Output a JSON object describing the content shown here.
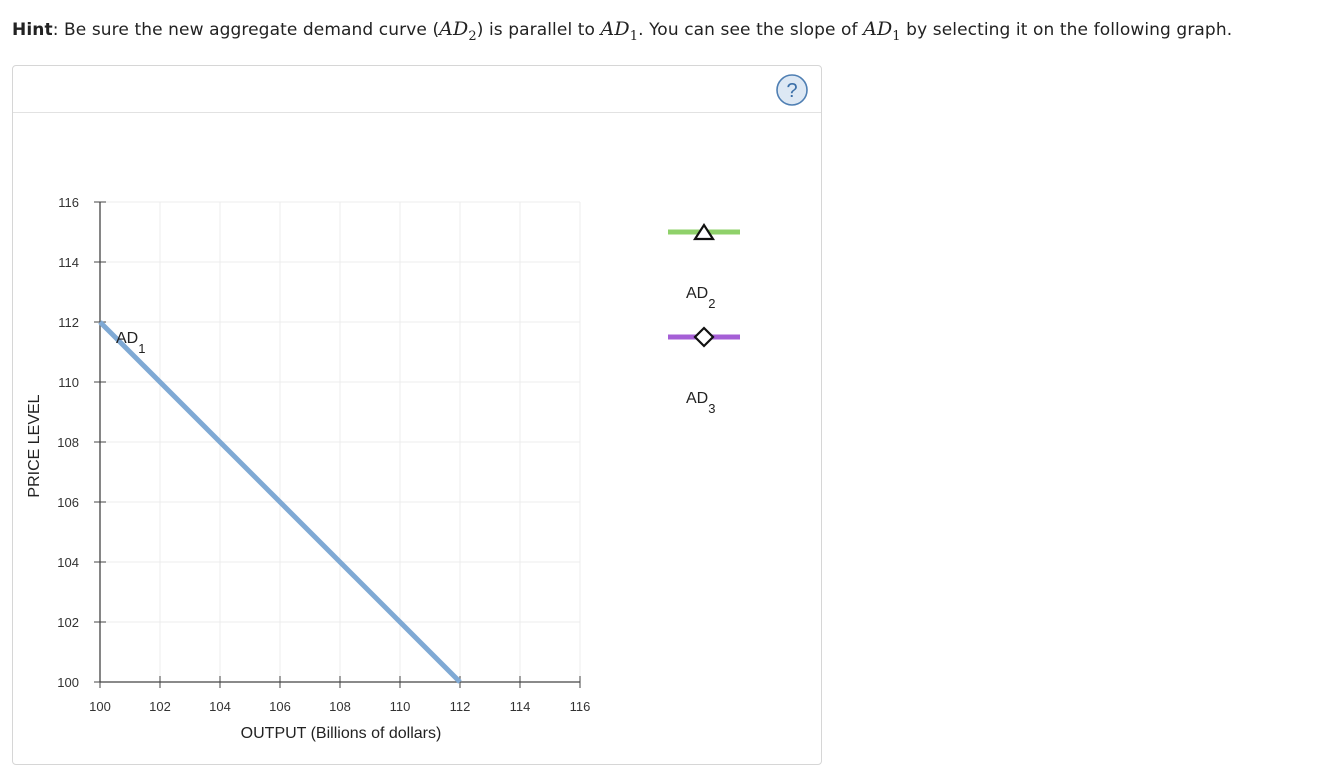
{
  "hint": {
    "label": "Hint",
    "text_1": ": Be sure the new aggregate demand curve (",
    "math_ad2": "AD",
    "math_ad2_sub": "2",
    "text_2": ") is parallel to ",
    "math_ad1": "AD",
    "math_ad1_sub": "1",
    "text_3": ". You can see the slope of ",
    "math_ad1b": "AD",
    "math_ad1b_sub": "1",
    "text_4": " by selecting it on the following graph."
  },
  "help_button": {
    "label": "?",
    "icon": "question-circle-icon"
  },
  "chart_data": {
    "type": "line",
    "xlabel": "OUTPUT (Billions of dollars)",
    "ylabel": "PRICE LEVEL",
    "xlim": [
      100,
      116
    ],
    "ylim": [
      100,
      116
    ],
    "x_ticks": [
      100,
      102,
      104,
      106,
      108,
      110,
      112,
      114,
      116
    ],
    "y_ticks": [
      100,
      102,
      104,
      106,
      108,
      110,
      112,
      114,
      116
    ],
    "grid": true,
    "series": [
      {
        "name": "AD",
        "name_sub": "1",
        "color": "#7fa9d4",
        "points": [
          [
            100,
            112
          ],
          [
            112,
            100
          ]
        ]
      }
    ],
    "palette": [
      {
        "name": "AD",
        "name_sub": "2",
        "color": "#8fd16a",
        "marker": "triangle"
      },
      {
        "name": "AD",
        "name_sub": "3",
        "color": "#a55fd6",
        "marker": "diamond"
      }
    ]
  }
}
